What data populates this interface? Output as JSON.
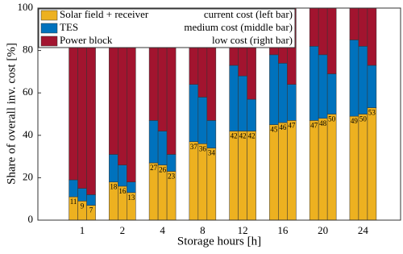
{
  "chart_data": {
    "type": "grouped_stacked_bar",
    "xlabel": "Storage hours [h]",
    "ylabel": "Share of overall inv. cost [%]",
    "categories": [
      "1",
      "2",
      "4",
      "8",
      "12",
      "16",
      "20",
      "24"
    ],
    "bar_legend": [
      "current cost (left bar)",
      "medium cost (middle bar)",
      "low cost (right bar)"
    ],
    "series": [
      {
        "name": "Solar field + receiver",
        "color": "#edb120",
        "show_values": true,
        "values": [
          [
            11,
            9,
            7
          ],
          [
            18,
            16,
            13
          ],
          [
            27,
            26,
            23
          ],
          [
            37,
            36,
            34
          ],
          [
            42,
            42,
            42
          ],
          [
            45,
            46,
            47
          ],
          [
            47,
            48,
            50
          ],
          [
            49,
            50,
            53
          ]
        ]
      },
      {
        "name": "TES",
        "color": "#0072bd",
        "values": [
          [
            8,
            6,
            5
          ],
          [
            13,
            10,
            5
          ],
          [
            20,
            16,
            8
          ],
          [
            27,
            22,
            13
          ],
          [
            31,
            26,
            15
          ],
          [
            33,
            28,
            17
          ],
          [
            35,
            30,
            19
          ],
          [
            36,
            32,
            20
          ]
        ]
      },
      {
        "name": "Power block",
        "color": "#a2142f",
        "values": [
          [
            81,
            85,
            88
          ],
          [
            69,
            74,
            82
          ],
          [
            53,
            58,
            69
          ],
          [
            36,
            42,
            53
          ],
          [
            27,
            32,
            43
          ],
          [
            22,
            26,
            36
          ],
          [
            18,
            22,
            31
          ],
          [
            15,
            18,
            27
          ]
        ]
      }
    ],
    "ylim": [
      0,
      100
    ],
    "yticks": [
      0,
      20,
      40,
      60,
      80,
      100
    ],
    "legend": "upper left"
  }
}
